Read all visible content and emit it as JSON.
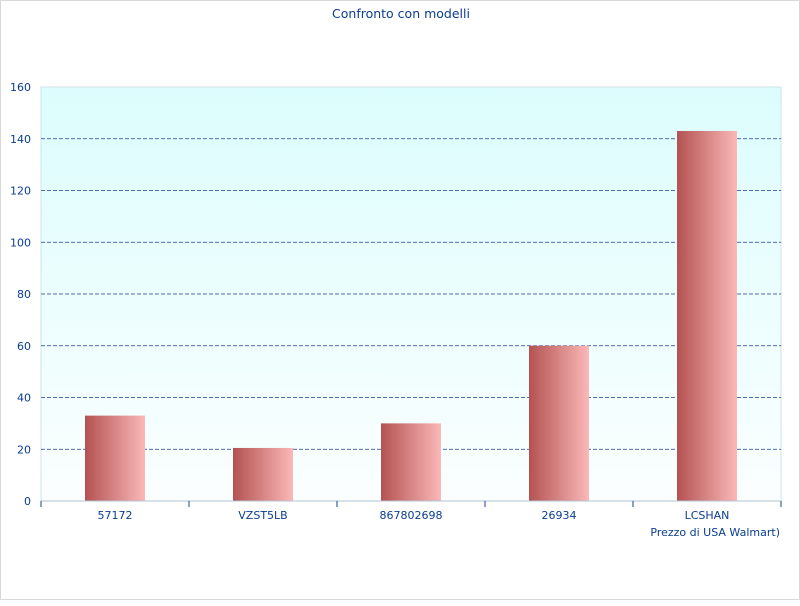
{
  "chart_data": {
    "type": "bar",
    "title": "Confronto con modelli",
    "xlabel": "Prezzo di USA Walmart)",
    "ylabel": "",
    "categories": [
      "57172",
      "VZST5LB",
      "867802698",
      "26934",
      "LCSHAN"
    ],
    "values": [
      33,
      20.5,
      30,
      60,
      143
    ],
    "ylim": [
      0,
      160
    ],
    "yticks": [
      0,
      20,
      40,
      60,
      80,
      100,
      120,
      140,
      160
    ],
    "grid": true,
    "legend": "none"
  },
  "colors": {
    "text": "#0b3d91",
    "plot_bg_top": "#dcfdfd",
    "plot_bg_bottom": "#fbfefe",
    "grid": "#1f3f8f",
    "bar_dark": "#b45252",
    "bar_light": "#fbb8b8",
    "axis": "#b0c4d0"
  }
}
